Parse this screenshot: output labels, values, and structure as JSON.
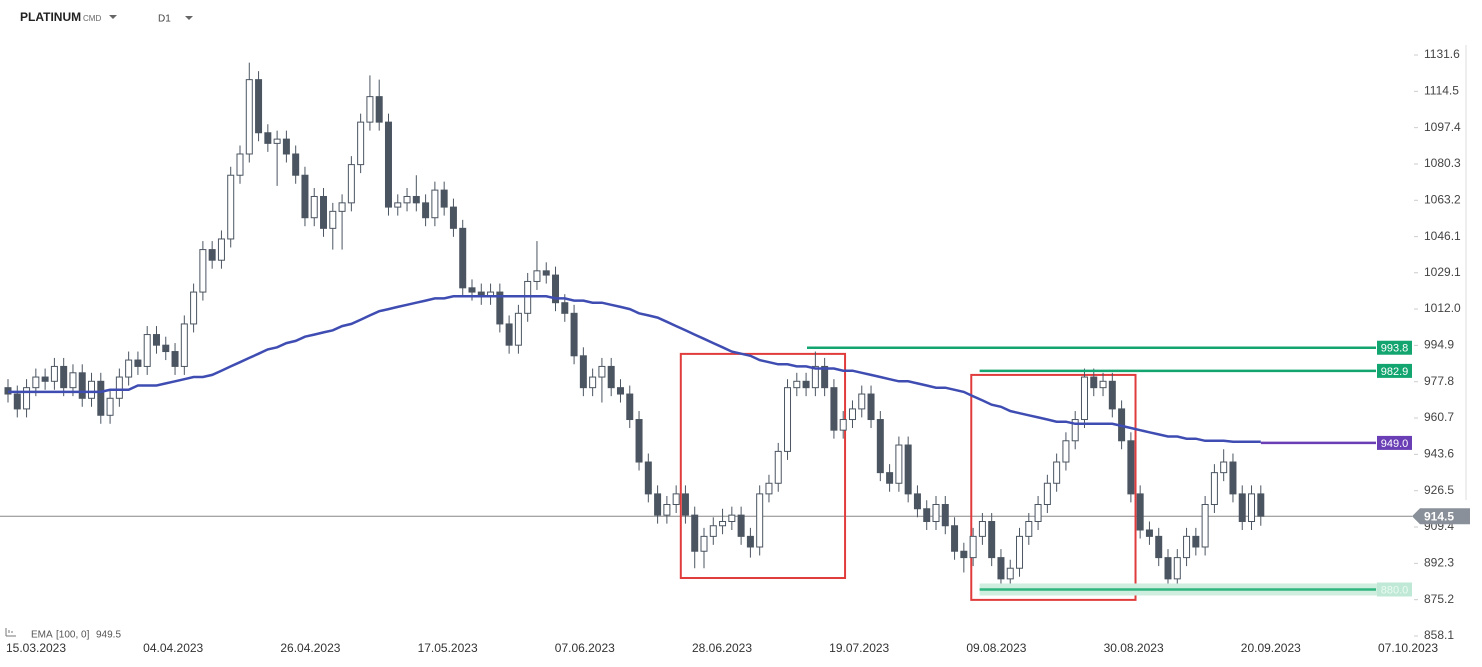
{
  "chart_data": {
    "type": "candlestick",
    "title": "PLATINUM",
    "subtitle": "CMD",
    "timeframe": "D1",
    "ylim": [
      858.1,
      1131.6
    ],
    "yticks": [
      1131.6,
      1114.5,
      1097.4,
      1080.3,
      1063.2,
      1046.1,
      1029.1,
      {
        "value": 1012,
        "label": "1012.0"
      },
      994.9,
      977.8,
      960.7,
      943.6,
      926.5,
      909.4,
      892.3,
      875.2,
      858.1
    ],
    "xticks": [
      "15.03.2023",
      "04.04.2023",
      "26.04.2023",
      "17.05.2023",
      "07.06.2023",
      "28.06.2023",
      "19.07.2023",
      "09.08.2023",
      "30.08.2023",
      "20.09.2023",
      "07.10.2023"
    ],
    "up_color": "#ffffff",
    "down_color": "#4b5561",
    "candles": [
      [
        975,
        979,
        968,
        972
      ],
      [
        972,
        976,
        961,
        965
      ],
      [
        965,
        979,
        961,
        975
      ],
      [
        975,
        984,
        971,
        980
      ],
      [
        980,
        984,
        974,
        978
      ],
      [
        978,
        989,
        974,
        985
      ],
      [
        985,
        989,
        971,
        975
      ],
      [
        975,
        986,
        971,
        982
      ],
      [
        982,
        986,
        966,
        970
      ],
      [
        970,
        982,
        966,
        978
      ],
      [
        978,
        982,
        958,
        962
      ],
      [
        962,
        974,
        958,
        970
      ],
      [
        970,
        984,
        966,
        980
      ],
      [
        980,
        992,
        976,
        988
      ],
      [
        988,
        992,
        981,
        985
      ],
      [
        985,
        1004,
        981,
        1000
      ],
      [
        1000,
        1004,
        991,
        995
      ],
      [
        995,
        999,
        988,
        992
      ],
      [
        992,
        996,
        981,
        985
      ],
      [
        985,
        1009,
        981,
        1005
      ],
      [
        1005,
        1024,
        1001,
        1020
      ],
      [
        1020,
        1044,
        1016,
        1040
      ],
      [
        1040,
        1044,
        1031,
        1035
      ],
      [
        1035,
        1049,
        1031,
        1045
      ],
      [
        1045,
        1079,
        1041,
        1075
      ],
      [
        1075,
        1089,
        1071,
        1085
      ],
      [
        1085,
        1128,
        1081,
        1120
      ],
      [
        1120,
        1124,
        1091,
        1095
      ],
      [
        1095,
        1099,
        1086,
        1090
      ],
      [
        1090,
        1096,
        1070,
        1092
      ],
      [
        1092,
        1096,
        1081,
        1085
      ],
      [
        1085,
        1089,
        1071,
        1075
      ],
      [
        1075,
        1079,
        1051,
        1055
      ],
      [
        1055,
        1069,
        1051,
        1065
      ],
      [
        1065,
        1069,
        1046,
        1050
      ],
      [
        1050,
        1062,
        1040,
        1058
      ],
      [
        1058,
        1066,
        1040,
        1062
      ],
      [
        1062,
        1084,
        1058,
        1080
      ],
      [
        1080,
        1104,
        1076,
        1100
      ],
      [
        1100,
        1122,
        1096,
        1112
      ],
      [
        1112,
        1120,
        1096,
        1100
      ],
      [
        1100,
        1104,
        1056,
        1060
      ],
      [
        1060,
        1066,
        1056,
        1062
      ],
      [
        1062,
        1069,
        1058,
        1065
      ],
      [
        1065,
        1075,
        1058,
        1062
      ],
      [
        1062,
        1066,
        1051,
        1055
      ],
      [
        1055,
        1072,
        1051,
        1068
      ],
      [
        1068,
        1072,
        1056,
        1060
      ],
      [
        1060,
        1064,
        1046,
        1050
      ],
      [
        1050,
        1054,
        1018,
        1022
      ],
      [
        1022,
        1026,
        1016,
        1020
      ],
      [
        1020,
        1024,
        1014,
        1018
      ],
      [
        1018,
        1024,
        1014,
        1020
      ],
      [
        1020,
        1024,
        1001,
        1005
      ],
      [
        1005,
        1009,
        991,
        995
      ],
      [
        995,
        1014,
        991,
        1010
      ],
      [
        1010,
        1029,
        1006,
        1025
      ],
      [
        1025,
        1044,
        1021,
        1030
      ],
      [
        1030,
        1034,
        1024,
        1028
      ],
      [
        1028,
        1032,
        1011,
        1015
      ],
      [
        1015,
        1019,
        1006,
        1010
      ],
      [
        1010,
        1014,
        986,
        990
      ],
      [
        990,
        994,
        971,
        975
      ],
      [
        975,
        984,
        971,
        980
      ],
      [
        980,
        989,
        968,
        985
      ],
      [
        985,
        989,
        971,
        975
      ],
      [
        975,
        979,
        968,
        972
      ],
      [
        972,
        976,
        956,
        960
      ],
      [
        960,
        964,
        936,
        940
      ],
      [
        940,
        944,
        921,
        925
      ],
      [
        925,
        929,
        911,
        915
      ],
      [
        915,
        924,
        911,
        920
      ],
      [
        920,
        929,
        916,
        925
      ],
      [
        925,
        929,
        911,
        915
      ],
      [
        915,
        919,
        890,
        898
      ],
      [
        898,
        909,
        890,
        905
      ],
      [
        905,
        914,
        901,
        910
      ],
      [
        910,
        918,
        906,
        912
      ],
      [
        912,
        919,
        908,
        915
      ],
      [
        915,
        919,
        901,
        905
      ],
      [
        905,
        909,
        895,
        900
      ],
      [
        900,
        929,
        896,
        925
      ],
      [
        925,
        934,
        921,
        930
      ],
      [
        930,
        949,
        926,
        945
      ],
      [
        945,
        979,
        941,
        975
      ],
      [
        975,
        982,
        971,
        978
      ],
      [
        978,
        982,
        971,
        975
      ],
      [
        975,
        992,
        971,
        985
      ],
      [
        985,
        989,
        971,
        975
      ],
      [
        975,
        979,
        951,
        955
      ],
      [
        955,
        964,
        951,
        960
      ],
      [
        960,
        969,
        956,
        965
      ],
      [
        965,
        976,
        961,
        972
      ],
      [
        972,
        976,
        956,
        960
      ],
      [
        960,
        964,
        931,
        935
      ],
      [
        935,
        939,
        926,
        930
      ],
      [
        930,
        952,
        926,
        948
      ],
      [
        948,
        952,
        921,
        925
      ],
      [
        925,
        929,
        914,
        918
      ],
      [
        918,
        922,
        908,
        912
      ],
      [
        912,
        924,
        908,
        920
      ],
      [
        920,
        924,
        906,
        910
      ],
      [
        910,
        914,
        894,
        898
      ],
      [
        898,
        902,
        888,
        895
      ],
      [
        895,
        909,
        891,
        905
      ],
      [
        905,
        916,
        901,
        912
      ],
      [
        912,
        916,
        891,
        895
      ],
      [
        895,
        899,
        878,
        885
      ],
      [
        885,
        894,
        881,
        890
      ],
      [
        890,
        909,
        886,
        905
      ],
      [
        905,
        916,
        901,
        912
      ],
      [
        912,
        924,
        908,
        920
      ],
      [
        920,
        934,
        916,
        930
      ],
      [
        930,
        944,
        926,
        940
      ],
      [
        940,
        954,
        936,
        950
      ],
      [
        950,
        964,
        946,
        960
      ],
      [
        960,
        984,
        956,
        980
      ],
      [
        980,
        984,
        971,
        975
      ],
      [
        975,
        982,
        971,
        978
      ],
      [
        978,
        982,
        961,
        965
      ],
      [
        965,
        969,
        946,
        950
      ],
      [
        950,
        954,
        921,
        925
      ],
      [
        925,
        929,
        904,
        908
      ],
      [
        908,
        912,
        901,
        905
      ],
      [
        905,
        909,
        891,
        895
      ],
      [
        895,
        899,
        881,
        885
      ],
      [
        885,
        899,
        881,
        895
      ],
      [
        895,
        909,
        891,
        905
      ],
      [
        905,
        909,
        896,
        900
      ],
      [
        900,
        924,
        896,
        920
      ],
      [
        920,
        939,
        916,
        935
      ],
      [
        935,
        946,
        931,
        940
      ],
      [
        940,
        944,
        921,
        925
      ],
      [
        925,
        929,
        908,
        912
      ],
      [
        912,
        929,
        908,
        925
      ],
      [
        925,
        929,
        910,
        914.5
      ]
    ],
    "ema": {
      "name": "EMA",
      "params": "[100, 0]",
      "value": 949.5,
      "color": "#3f4db3",
      "values": [
        973,
        973,
        973,
        973,
        973,
        973,
        973,
        973,
        973,
        973,
        973,
        974,
        974,
        974,
        976,
        976,
        976,
        977,
        978,
        979,
        980,
        980,
        981,
        983,
        985,
        987,
        989,
        991,
        993,
        994,
        996,
        997,
        999,
        1000,
        1001,
        1002,
        1004,
        1005,
        1007,
        1009,
        1011,
        1012,
        1013,
        1014,
        1015,
        1016,
        1017,
        1017,
        1018,
        1018,
        1018,
        1018,
        1018,
        1018,
        1018,
        1018,
        1018,
        1018,
        1018,
        1017,
        1017,
        1016,
        1016,
        1015,
        1015,
        1014,
        1013,
        1012,
        1010,
        1009,
        1008,
        1006,
        1004,
        1002,
        1000,
        998,
        996,
        994,
        992,
        991,
        990,
        988,
        987,
        986,
        986,
        985,
        985,
        984,
        984,
        984,
        983,
        983,
        982,
        981,
        980,
        979,
        978,
        978,
        977,
        976,
        975,
        975,
        974,
        973,
        971,
        969,
        967,
        966,
        964,
        963,
        962,
        961,
        960,
        959,
        959,
        958,
        958,
        958,
        958,
        958,
        957,
        956,
        955,
        954,
        953,
        952,
        952,
        951,
        951,
        950,
        950,
        950,
        949.5,
        949.5,
        949.5,
        949.5
      ]
    },
    "levels": [
      {
        "value": 993.8,
        "start": 86.1,
        "color": "#13a56f"
      },
      {
        "value": 982.9,
        "start": 104.7,
        "color": "#13a56f"
      },
      {
        "value": 949,
        "label": "949.0",
        "start": 135,
        "color": "#6a3fb5"
      },
      {
        "value": 880,
        "label": "880.0",
        "start": 104.7,
        "color": "#2fb57e"
      }
    ],
    "last_price": 914.5,
    "boxes": [
      {
        "start": 72.5,
        "end": 90.2,
        "top": 990.9,
        "bottom": 885.4,
        "color": "#e03c3c"
      },
      {
        "start": 103.8,
        "end": 121.5,
        "top": 981,
        "bottom": 875.1,
        "color": "#e03c3c"
      }
    ]
  }
}
